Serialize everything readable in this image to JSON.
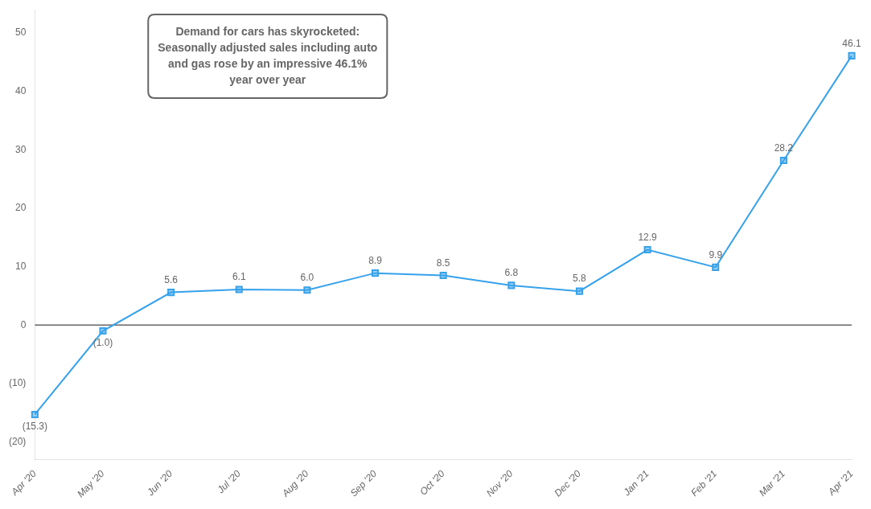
{
  "chart_data": {
    "type": "line",
    "categories": [
      "Apr '20",
      "May '20",
      "Jun '20",
      "Jul '20",
      "Aug '20",
      "Sep '20",
      "Oct '20",
      "Nov '20",
      "Dec '20",
      "Jan '21",
      "Feb '21",
      "Mar '21",
      "Apr '21"
    ],
    "values": [
      -15.3,
      -1.0,
      5.6,
      6.1,
      6.0,
      8.9,
      8.5,
      6.8,
      5.8,
      12.9,
      9.9,
      28.2,
      46.1
    ],
    "value_labels": [
      "(15.3)",
      "(1.0)",
      "5.6",
      "6.1",
      "6.0",
      "8.9",
      "8.5",
      "6.8",
      "5.8",
      "12.9",
      "9.9",
      "28.2",
      "46.1"
    ],
    "data_labels": true,
    "marker": "square",
    "ylim": [
      -23,
      54
    ],
    "yticks": [
      {
        "value": -20,
        "label": "(20)"
      },
      {
        "value": -10,
        "label": "(10)"
      },
      0,
      10,
      20,
      30,
      40,
      50
    ],
    "grid": false,
    "annotations": [
      "Demand for cars has skyrocketed:\nSeasonally adjusted sales including auto\nand gas rose by an impressive 46.1%\nyear over year"
    ]
  }
}
